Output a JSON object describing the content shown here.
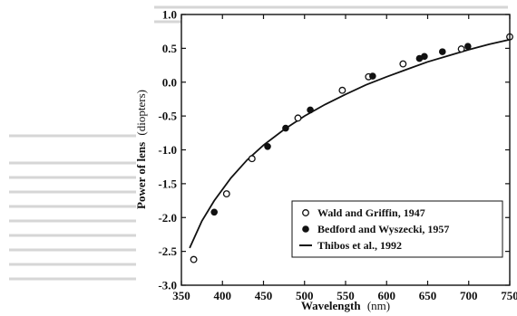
{
  "chart_data": {
    "type": "scatter",
    "title": "",
    "xlabel": "Wavelength",
    "xlabel_unit": "(nm)",
    "ylabel": "Power of lens",
    "ylabel_unit": "(diopters)",
    "xlim": [
      350,
      750
    ],
    "ylim": [
      -3.0,
      1.0
    ],
    "x_ticks": [
      350,
      400,
      450,
      500,
      550,
      600,
      650,
      700,
      750
    ],
    "x_tick_labels": [
      "350",
      "400",
      "450",
      "500",
      "550",
      "600",
      "650",
      "700",
      "750"
    ],
    "y_ticks": [
      1.0,
      0.5,
      0.0,
      -0.5,
      -1.0,
      -1.5,
      -2.0,
      -2.5,
      -3.0
    ],
    "y_tick_labels": [
      "1.0",
      "0.5",
      "0.0",
      "-0.5",
      "-1.0",
      "-1.5",
      "-2.0",
      "-2.5",
      "-3.0"
    ],
    "grid": false,
    "legend_position": "bottom-right",
    "series": [
      {
        "name": "Wald and Griffin, 1947",
        "marker": "open-circle",
        "color": "#111111",
        "x": [
          365,
          405,
          436,
          492,
          546,
          578,
          620,
          691,
          750
        ],
        "y": [
          -2.62,
          -1.65,
          -1.13,
          -0.53,
          -0.12,
          0.08,
          0.27,
          0.49,
          0.67
        ]
      },
      {
        "name": "Bedford and Wyszecki, 1957",
        "marker": "filled-circle",
        "color": "#111111",
        "x": [
          390,
          455,
          477,
          507,
          583,
          640,
          646,
          668,
          699
        ],
        "y": [
          -1.92,
          -0.95,
          -0.68,
          -0.41,
          0.09,
          0.35,
          0.38,
          0.45,
          0.53
        ]
      },
      {
        "name": "Thibos et al., 1992",
        "marker": "line",
        "color": "#111111",
        "x": [
          360,
          375,
          390,
          410,
          430,
          450,
          475,
          500,
          525,
          550,
          575,
          600,
          625,
          650,
          675,
          700,
          725,
          750
        ],
        "y": [
          -2.45,
          -2.05,
          -1.75,
          -1.42,
          -1.15,
          -0.93,
          -0.7,
          -0.5,
          -0.33,
          -0.18,
          -0.04,
          0.08,
          0.19,
          0.3,
          0.39,
          0.48,
          0.56,
          0.63
        ]
      }
    ]
  }
}
